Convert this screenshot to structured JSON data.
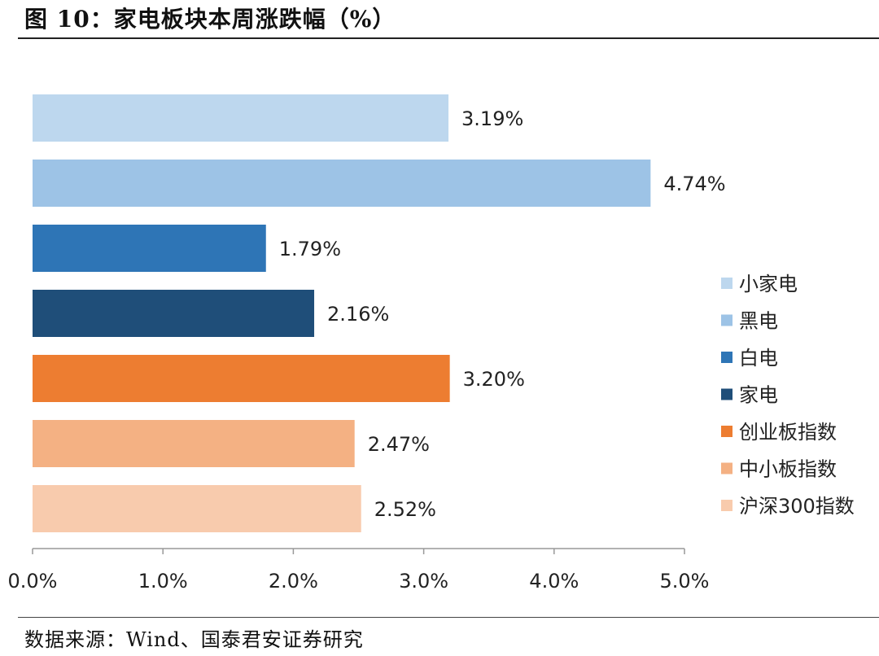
{
  "header": {
    "title": "图 10：家电板块本周涨跌幅（%）"
  },
  "footer": {
    "source": "数据来源：Wind、国泰君安证券研究"
  },
  "chart_data": {
    "type": "bar",
    "orientation": "horizontal",
    "title": "",
    "xlabel": "",
    "ylabel": "",
    "categories": [
      "小家电",
      "黑电",
      "白电",
      "家电",
      "创业板指数",
      "中小板指数",
      "沪深300指数"
    ],
    "values": [
      3.19,
      4.74,
      1.79,
      2.16,
      3.2,
      2.47,
      2.52
    ],
    "data_labels": [
      "3.19%",
      "4.74%",
      "1.79%",
      "2.16%",
      "3.20%",
      "2.47%",
      "2.52%"
    ],
    "colors": [
      "#BDD7EE",
      "#9DC3E6",
      "#2E75B6",
      "#1F4E79",
      "#ED7D31",
      "#F4B183",
      "#F8CBAD"
    ],
    "xlim": [
      0,
      5
    ],
    "xticks": [
      "0.0%",
      "1.0%",
      "2.0%",
      "3.0%",
      "4.0%",
      "5.0%"
    ],
    "grid": false,
    "legend_position": "right"
  }
}
